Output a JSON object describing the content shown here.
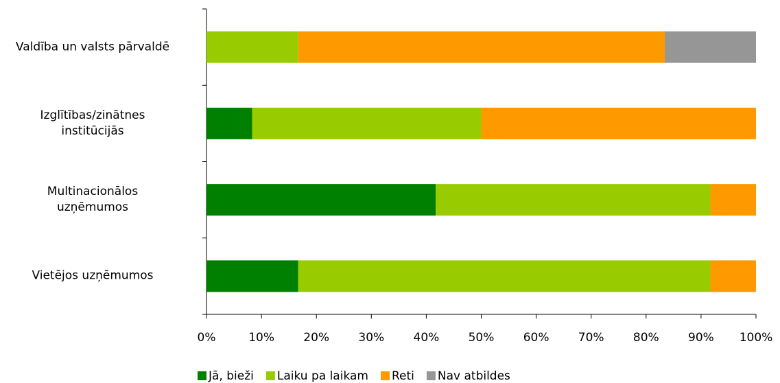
{
  "chart_data": {
    "type": "stacked_bar_horizontal",
    "categories": [
      "Valdība un valsts pārvaldē",
      "Izglītības/zinātnes\ninstitūcijās",
      "Multinacionālos\nuzņēmumos",
      "Vietējos uzņēmumos"
    ],
    "series": [
      {
        "name": "Jā, bieži",
        "color": "#008000",
        "values": [
          0,
          8.3,
          41.7,
          16.7
        ]
      },
      {
        "name": "Laiku pa laikam",
        "color": "#99cc00",
        "values": [
          16.7,
          41.7,
          50,
          75
        ]
      },
      {
        "name": "Reti",
        "color": "#ff9900",
        "values": [
          66.7,
          50,
          8.3,
          8.3
        ]
      },
      {
        "name": "Nav atbildes",
        "color": "#969696",
        "values": [
          16.6,
          0,
          0,
          0
        ]
      }
    ],
    "xlim": [
      0,
      100
    ],
    "xticks": [
      {
        "value": 0,
        "label": "0%"
      },
      {
        "value": 10,
        "label": "10%"
      },
      {
        "value": 20,
        "label": "20%"
      },
      {
        "value": 30,
        "label": "30%"
      },
      {
        "value": 40,
        "label": "40%"
      },
      {
        "value": 50,
        "label": "50%"
      },
      {
        "value": 60,
        "label": "60%"
      },
      {
        "value": 70,
        "label": "70%"
      },
      {
        "value": 80,
        "label": "80%"
      },
      {
        "value": 90,
        "label": "90%"
      },
      {
        "value": 100,
        "label": "100%"
      }
    ],
    "legend": "bottom"
  }
}
